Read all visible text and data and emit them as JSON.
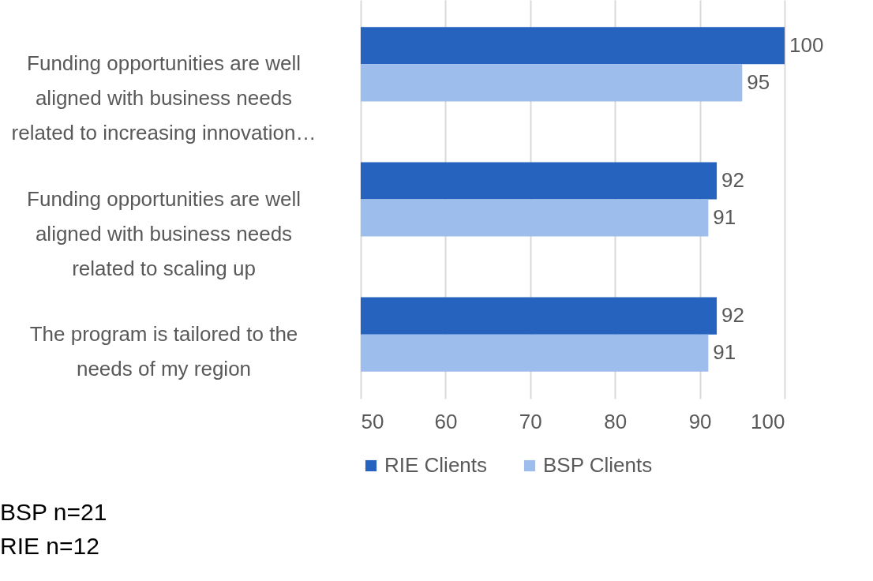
{
  "chart_data": {
    "type": "bar",
    "orientation": "horizontal",
    "categories": [
      "Funding opportunities are well aligned with business needs related to increasing innovation…",
      "Funding opportunities are well aligned with business needs related to scaling up",
      "The program is tailored to the needs of my region"
    ],
    "series": [
      {
        "name": "RIE Clients",
        "color": "#2563be",
        "values": [
          100,
          92,
          92
        ]
      },
      {
        "name": "BSP Clients",
        "color": "#9dbdec",
        "values": [
          95,
          91,
          91
        ]
      }
    ],
    "xlim": [
      50,
      100
    ],
    "xticks": [
      50,
      60,
      70,
      80,
      90,
      100
    ],
    "grid": "x",
    "legend": "bottom",
    "data_labels": true,
    "annotations": [
      "BSP n=21",
      "RIE n=12"
    ]
  }
}
